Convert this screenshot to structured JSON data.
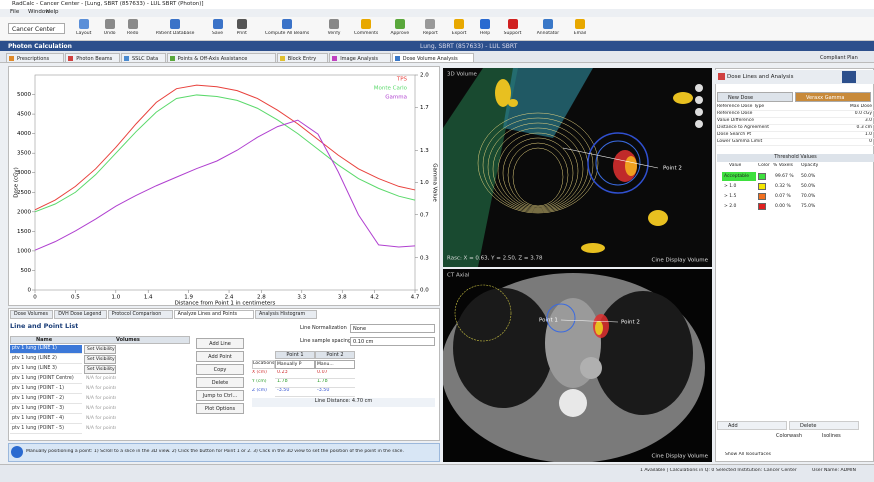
{
  "window": {
    "title": "RadCalc - Cancer Center - [Lung, SBRT (857633) - LUL SBRT (Photon)]",
    "menu": [
      "File",
      "Window",
      "Help"
    ]
  },
  "toolbar": [
    "Cancer Center",
    "Layout",
    "Undo",
    "Redo",
    "Patient Database",
    "Save",
    "Print",
    "Compute All Beams",
    "Verify",
    "Comments",
    "Approve",
    "Report",
    "Export",
    "Help",
    "Support",
    "Annotator",
    "Email"
  ],
  "header": {
    "section": "Photon Calculation",
    "patient": "Lung, SBRT (857633) - LUL SBRT"
  },
  "tabs": [
    "Prescriptions",
    "Photon Beams",
    "SSLC Data",
    "Points & Off-Axis Assistance",
    "Block Entry",
    "Image Analysis",
    "Dose Volume Analysis"
  ],
  "plan_status": "Compliant Plan",
  "chart": {
    "type": "line",
    "x_label": "Distance from Point 1 in centimeters",
    "y_label": "Dose (cGy)",
    "y2_label": "Gamma Value",
    "x": [
      0,
      0.25,
      0.5,
      0.75,
      1,
      1.25,
      1.5,
      1.75,
      2,
      2.25,
      2.5,
      2.75,
      3,
      3.25,
      3.5,
      3.75,
      4,
      4.25,
      4.5,
      4.7
    ],
    "series": [
      {
        "name": "TPS",
        "color": "#e8413c",
        "values": [
          2050,
          2300,
          2650,
          3100,
          3650,
          4250,
          4800,
          5150,
          5240,
          5200,
          5100,
          4900,
          4600,
          4250,
          3850,
          3450,
          3100,
          2850,
          2650,
          2560
        ]
      },
      {
        "name": "Monte Carlo",
        "color": "#5bd96b",
        "values": [
          2000,
          2200,
          2500,
          2950,
          3500,
          4050,
          4550,
          4900,
          4990,
          4950,
          4850,
          4650,
          4350,
          4000,
          3600,
          3200,
          2850,
          2600,
          2400,
          2300
        ]
      },
      {
        "name": "Gamma",
        "color": "#b040d0",
        "axis": "y2",
        "values": [
          0.37,
          0.45,
          0.55,
          0.66,
          0.78,
          0.88,
          0.97,
          1.05,
          1.13,
          1.2,
          1.3,
          1.42,
          1.52,
          1.58,
          1.45,
          1.1,
          0.7,
          0.42,
          0.4,
          0.41
        ]
      }
    ],
    "xlim": [
      0,
      4.7
    ],
    "xticks": [
      0,
      0.5,
      {
        "value": 1,
        "label": "1.0"
      },
      1.4,
      1.9,
      2.4,
      2.8,
      3.3,
      3.8,
      4.2,
      4.7
    ],
    "ylim": [
      0,
      5500
    ],
    "yticks": [
      0,
      500,
      1000,
      1500,
      2000,
      2500,
      3000,
      3500,
      4000,
      4500,
      5000
    ],
    "y2lim": [
      0,
      2
    ],
    "y2ticks": [
      {
        "value": 0,
        "label": "0.0"
      },
      0.3,
      0.7,
      {
        "value": 1,
        "label": "1.0"
      },
      1.3,
      1.7,
      {
        "value": 2,
        "label": "2.0"
      }
    ],
    "legend": "upper right"
  },
  "bottom_tabs": [
    "Dose Volumes",
    "DVH Dose Legend",
    "Protocol Comparison",
    "Analyze Lines and Points",
    "Analysis Histogram"
  ],
  "line_list": {
    "title": "Line and Point List",
    "columns": [
      "Name",
      "Volumes"
    ],
    "rows": [
      [
        "ptv 1 lung (LINE 1)",
        "Set Visibility"
      ],
      [
        "ptv 1 lung (LINE 2)",
        "Set Visibility"
      ],
      [
        "ptv 1 lung (LINE 3)",
        "Set Visibility"
      ],
      [
        "ptv 1 lung (POINT Centre)",
        "N/A for points"
      ],
      [
        "ptv 1 lung (POINT - 1)",
        "N/A for points"
      ],
      [
        "ptv 1 lung (POINT - 2)",
        "N/A for points"
      ],
      [
        "ptv 1 lung (POINT - 3)",
        "N/A for points"
      ],
      [
        "ptv 1 lung (POINT - 4)",
        "N/A for points"
      ],
      [
        "ptv 1 lung (POINT - 5)",
        "N/A for points"
      ]
    ],
    "buttons": [
      "Add Line",
      "Add Point",
      "Copy",
      "Delete",
      "Jump to Ctrl...",
      "Plot Options"
    ],
    "normalization_label": "Line Normalization",
    "normalization": "None",
    "spacing_label": "Line sample spacing",
    "spacing": "0.10 cm"
  },
  "points": {
    "headers": [
      "Point 1",
      "Point 2"
    ],
    "coord_label": "Locations",
    "modes": [
      "Manually P",
      "Manu..."
    ],
    "rows": [
      [
        "X (cm)",
        "0.23",
        "0.07"
      ],
      [
        "Y (cm)",
        "1.78",
        "1.78"
      ],
      [
        "Z (cm)",
        "-3.50",
        "-3.50"
      ]
    ],
    "distance": "Line Distance: 4.70 cm"
  },
  "info": "Manually positioning a point: 1) Scroll to a slice in the 3D view. 2) Click the button for Point 1 or 2. 3) Click in the 3D view to set the position of the point in the slice.",
  "views": {
    "top_title": "3D Volume",
    "coords": "Rasc: X = 0.63, Y = 2.50, Z = 3.78",
    "point1": "Point 1",
    "point2": "Point 2",
    "cine": "Cine Display Volume",
    "bottom_title": "CT Axial"
  },
  "right": {
    "title": "Dose Lines and Analysis",
    "tabs": [
      "New Dose",
      "Veraxx Gamma"
    ],
    "properties": [
      [
        "Reference Dose Type",
        "Max Dose"
      ],
      [
        "Reference Dose",
        "0.0 cGy"
      ],
      [
        "Value Difference",
        "3.0"
      ],
      [
        "Distance to Agreement",
        "0.3 cm"
      ],
      [
        "Dose Search Pt",
        "1.0"
      ],
      [
        "Lower Gamma Limit",
        "0"
      ]
    ],
    "threshold_title": "Threshold Values",
    "threshold_columns": [
      "Value",
      "Color",
      "% Voxels",
      "Opacity"
    ],
    "thresholds": [
      {
        "value": "Acceptable",
        "color": "#3ee03e",
        "voxels": "99.67 %",
        "opacity": "50.0%"
      },
      {
        "value": "> 1.0",
        "color": "#f2e600",
        "voxels": "0.32 %",
        "opacity": "50.0%"
      },
      {
        "value": "> 1.5",
        "color": "#f07020",
        "voxels": "0.07 %",
        "opacity": "70.0%"
      },
      {
        "value": "> 2.0",
        "color": "#e02020",
        "voxels": "0.00 %",
        "opacity": "75.0%"
      }
    ],
    "add": "Add",
    "delete": "Delete",
    "display_modes": [
      "Colorwash",
      "Isolines"
    ],
    "show_all": "Show All Isosurfaces"
  },
  "status": [
    "1 Available | Calculations in Q: 0",
    "Selected Institution: Cancer Center",
    "User Name: ADMIN"
  ]
}
